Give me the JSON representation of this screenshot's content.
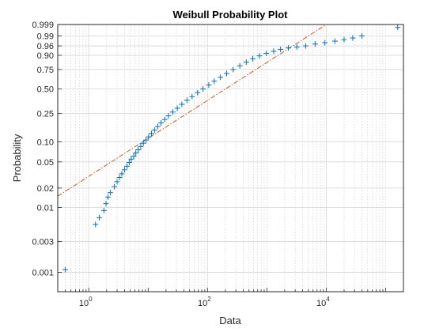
{
  "chart_data": {
    "type": "scatter",
    "title": "Weibull Probability Plot",
    "xlabel": "Data",
    "ylabel": "Probability",
    "x_scale": "log",
    "y_scale": "weibull",
    "xlim": [
      0.3,
      200000
    ],
    "ylim": [
      0.0005,
      0.999
    ],
    "x_ticks": [
      {
        "value": 1,
        "base": "10",
        "exp": "0"
      },
      {
        "value": 100,
        "base": "10",
        "exp": "2"
      },
      {
        "value": 10000,
        "base": "10",
        "exp": "4"
      }
    ],
    "y_ticks": [
      {
        "value": 0.001,
        "label": "0.001"
      },
      {
        "value": 0.003,
        "label": "0.003"
      },
      {
        "value": 0.01,
        "label": "0.01"
      },
      {
        "value": 0.02,
        "label": "0.02"
      },
      {
        "value": 0.05,
        "label": "0.05"
      },
      {
        "value": 0.1,
        "label": "0.10"
      },
      {
        "value": 0.25,
        "label": "0.25"
      },
      {
        "value": 0.5,
        "label": "0.50"
      },
      {
        "value": 0.75,
        "label": "0.75"
      },
      {
        "value": 0.9,
        "label": "0.90"
      },
      {
        "value": 0.96,
        "label": "0.96"
      },
      {
        "value": 0.99,
        "label": "0.99"
      },
      {
        "value": 0.999,
        "label": "0.999"
      }
    ],
    "grid": true,
    "series": [
      {
        "type": "scatter",
        "marker": "+",
        "color": "#0072BD",
        "x": [
          0.4,
          1.3,
          1.5,
          1.8,
          1.95,
          2.1,
          2.3,
          2.7,
          3.0,
          3.3,
          3.6,
          4.0,
          4.4,
          4.8,
          5.2,
          5.7,
          6.2,
          6.8,
          7.5,
          8.3,
          9.2,
          10.2,
          11.4,
          12.8,
          14.5,
          16.5,
          19,
          22,
          26,
          31,
          37,
          45,
          55,
          68,
          84,
          105,
          130,
          165,
          210,
          270,
          350,
          450,
          580,
          750,
          980,
          1300,
          1700,
          2300,
          3200,
          4500,
          6500,
          9500,
          14000,
          20000,
          28000,
          40000,
          160000
        ],
        "y": [
          0.0011,
          0.0055,
          0.007,
          0.009,
          0.0115,
          0.0145,
          0.017,
          0.021,
          0.025,
          0.029,
          0.033,
          0.038,
          0.043,
          0.049,
          0.055,
          0.061,
          0.068,
          0.076,
          0.085,
          0.095,
          0.106,
          0.118,
          0.132,
          0.148,
          0.166,
          0.186,
          0.208,
          0.233,
          0.262,
          0.294,
          0.33,
          0.37,
          0.41,
          0.455,
          0.5,
          0.55,
          0.6,
          0.65,
          0.7,
          0.75,
          0.795,
          0.835,
          0.87,
          0.895,
          0.915,
          0.93,
          0.942,
          0.95,
          0.955,
          0.96,
          0.968,
          0.973,
          0.978,
          0.982,
          0.986,
          0.99,
          0.998
        ]
      },
      {
        "type": "line",
        "style": "dash-dot",
        "color": "#D95319",
        "x": [
          0.3,
          10000
        ],
        "y": [
          0.015,
          0.999
        ]
      }
    ]
  }
}
